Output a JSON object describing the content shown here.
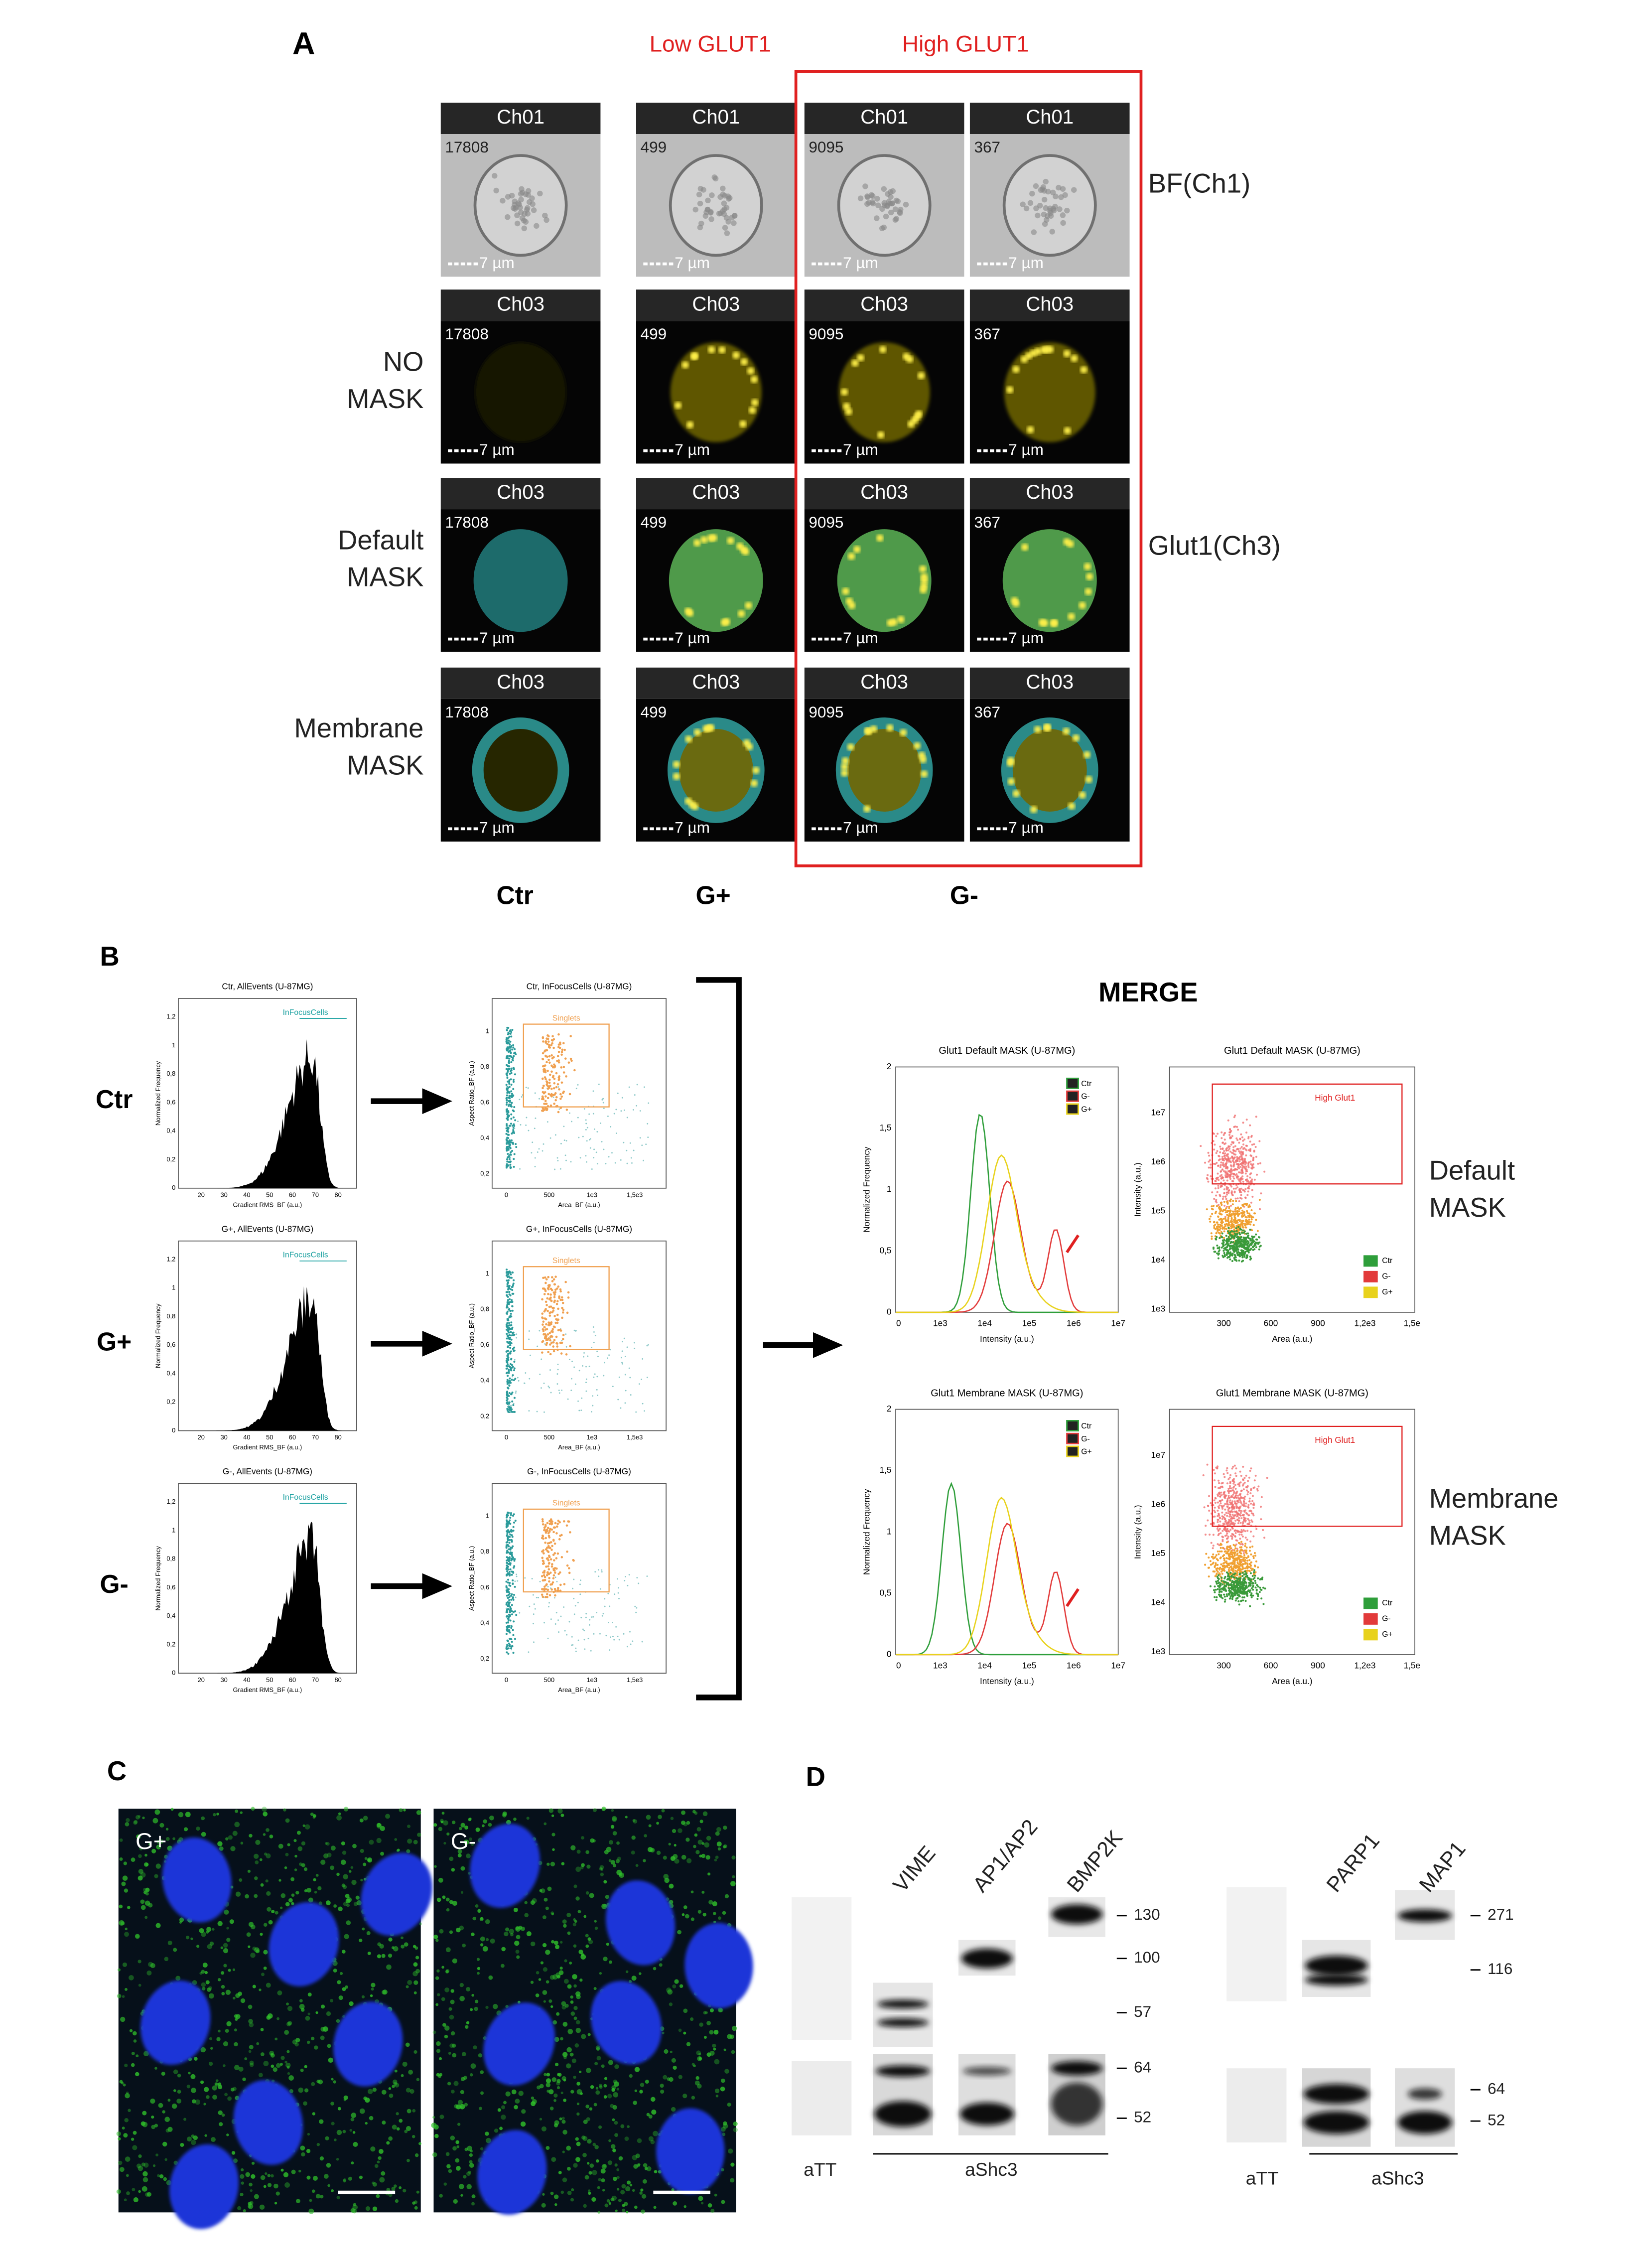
{
  "panel_a": {
    "label": "A",
    "low_header": "Low GLUT1",
    "high_header": "High GLUT1",
    "channels": [
      "Ch01",
      "Ch03",
      "Ch03",
      "Ch03"
    ],
    "ids": [
      17808,
      499,
      9095,
      367
    ],
    "scale": "7 µm",
    "row_labels": [
      [
        "NO",
        "MASK"
      ],
      [
        "Default",
        "MASK"
      ],
      [
        "Membrane",
        "MASK"
      ]
    ],
    "side_labels": [
      "BF(Ch1)",
      "Glut1(Ch3)"
    ],
    "groups": [
      "Ctr",
      "G+",
      "G-"
    ]
  },
  "panel_b": {
    "label": "B",
    "rows": [
      "Ctr",
      "G+",
      "G-"
    ],
    "hist_titles": [
      "Ctr, AllEvents (U-87MG)",
      "G+, AllEvents (U-87MG)",
      "G-, AllEvents (U-87MG)"
    ],
    "hist_gate": "InFocusCells",
    "hist_x_title": "Gradient RMS_BF (a.u.)",
    "hist_y_title": "Normalized Frequency",
    "hist_xticks": [
      "20",
      "30",
      "40",
      "50",
      "60",
      "70",
      "80"
    ],
    "hist_yticks": [
      "0",
      "0,2",
      "0,4",
      "0,6",
      "0,8",
      "1",
      "1,2"
    ],
    "scatter_titles": [
      "Ctr, InFocusCells (U-87MG)",
      "G+, InFocusCells (U-87MG)",
      "G-, InFocusCells (U-87MG)"
    ],
    "scatter_gate": "Singlets",
    "scatter_x_title": "Area_BF (a.u.)",
    "scatter_y_title": "Aspect Ratio_BF (a.u.)",
    "scatter_xticks": [
      "0",
      "500",
      "1e3",
      "1,5e3"
    ],
    "scatter_yticks": [
      "0,2",
      "0,4",
      "0,6",
      "0,8",
      "1"
    ],
    "merge": {
      "title": "MERGE",
      "hist_titles": [
        "Glut1 Default MASK (U-87MG)",
        "Glut1 Membrane MASK (U-87MG)"
      ],
      "scatter_titles": [
        "Glut1 Default MASK (U-87MG)",
        "Glut1 Membrane MASK (U-87MG)"
      ],
      "hist_x_title": "Intensity (a.u.)",
      "hist_y_title": "Normalized Frequency",
      "scatter_x_title": "Area (a.u.)",
      "scatter_y_title": "Intensity (a.u.)",
      "hist_xticks": [
        "0",
        "1e3",
        "1e4",
        "1e5",
        "1e6",
        "1e7"
      ],
      "hist_yticks": [
        "0",
        "0,5",
        "1",
        "1,5",
        "2"
      ],
      "scatter_xticks": [
        "300",
        "600",
        "900",
        "1,2e3",
        "1,5e"
      ],
      "scatter_yticks": [
        "1e3",
        "1e4",
        "1e5",
        "1e6",
        "1e7"
      ],
      "gate": "High Glut1",
      "legend": [
        {
          "name": "Ctr",
          "color": "#2e9e3a"
        },
        {
          "name": "G-",
          "color": "#e23a3a"
        },
        {
          "name": "G+",
          "color": "#e8d21c"
        }
      ],
      "side_labels": [
        [
          "Default",
          "MASK"
        ],
        [
          "Membrane",
          "MASK"
        ]
      ]
    }
  },
  "panel_c": {
    "label": "C",
    "images": [
      "G+",
      "G-"
    ]
  },
  "panel_d": {
    "label": "D",
    "blots": [
      {
        "lanes": [
          "VIME",
          "AP1/AP2",
          "BMP2K"
        ],
        "markers": [
          "130",
          "100",
          "57",
          "64",
          "52"
        ],
        "control": "aTT",
        "antibody": "aShc3"
      },
      {
        "lanes": [
          "PARP1",
          "MAP1"
        ],
        "markers": [
          "271",
          "116",
          "64",
          "52"
        ],
        "control": "aTT",
        "antibody": "aShc3"
      }
    ]
  }
}
